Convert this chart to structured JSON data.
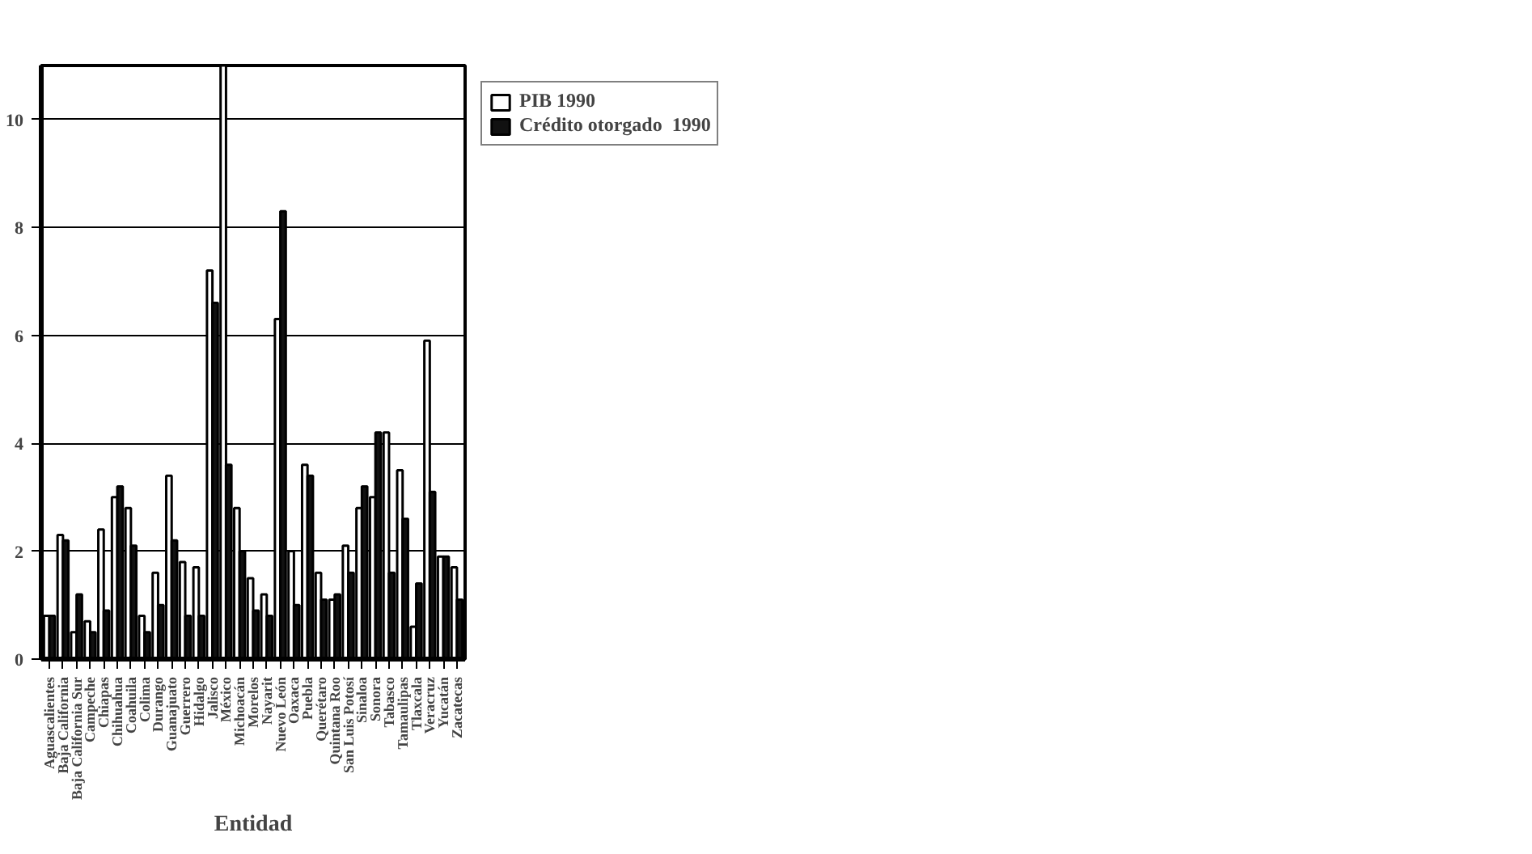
{
  "chart_data": {
    "type": "bar",
    "xlabel": "Entidad",
    "categories": [
      "Aguascalientes",
      "Baja California",
      "Baja California Sur",
      "Campeche",
      "Chiapas",
      "Chihuahua",
      "Coahuila",
      "Colima",
      "Durango",
      "Guanajuato",
      "Guerrero",
      "Hidalgo",
      "Jalisco",
      "México",
      "Michoacán",
      "Morelos",
      "Nayarit",
      "Nuevo León",
      "Oaxaca",
      "Puebla",
      "Querétaro",
      "Quintana Roo",
      "San Luis Potosí",
      "Sinaloa",
      "Sonora",
      "Tabasco",
      "Tamaulipas",
      "Tlaxcala",
      "Veracruz",
      "Yucatán",
      "Zacatecas"
    ],
    "series": [
      {
        "name": "PIB 1990",
        "color": "#ffffff",
        "values": [
          0.8,
          2.3,
          0.5,
          0.7,
          2.4,
          3.0,
          2.8,
          0.8,
          1.6,
          3.4,
          1.8,
          1.7,
          7.2,
          11.0,
          2.8,
          1.5,
          1.2,
          6.3,
          2.0,
          3.6,
          1.6,
          1.1,
          2.1,
          2.8,
          3.0,
          4.2,
          3.5,
          0.6,
          5.9,
          1.9,
          1.7
        ]
      },
      {
        "name": "Crédito otorgado  1990",
        "color": "#111111",
        "values": [
          0.8,
          2.2,
          1.2,
          0.5,
          0.9,
          3.2,
          2.1,
          0.5,
          1.0,
          2.2,
          0.8,
          0.8,
          6.6,
          3.6,
          2.0,
          0.9,
          0.8,
          8.3,
          1.0,
          3.4,
          1.1,
          1.2,
          1.6,
          3.2,
          4.2,
          1.6,
          2.6,
          1.4,
          3.1,
          1.9,
          1.1
        ]
      }
    ],
    "ylim": [
      0,
      11
    ],
    "yticks": [
      0,
      2,
      4,
      6,
      8,
      10
    ],
    "grid": "y",
    "legend": "top right"
  }
}
